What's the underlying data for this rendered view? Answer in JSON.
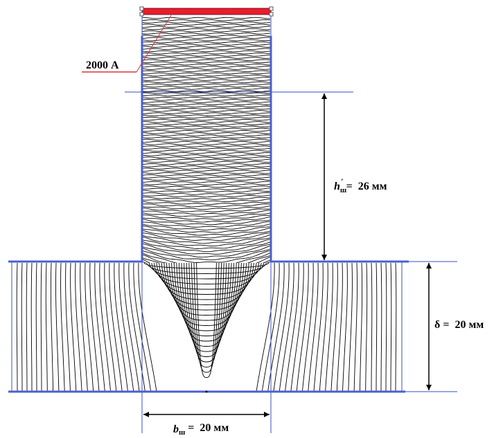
{
  "current_label": "2000 А",
  "tooth_height": {
    "symbol": "h",
    "subscript": "ш",
    "prime": "′",
    "equals": "=",
    "value": "26 мм"
  },
  "gap": {
    "symbol": "δ",
    "equals": "=",
    "value": "20 мм"
  },
  "tooth_width": {
    "symbol": "b",
    "subscript": "ш",
    "equals": "=",
    "value": "20 мм"
  },
  "colors": {
    "outline": "#4a5fd0",
    "thin_line": "#3a4fc0",
    "conductor": "#e81c2c",
    "leader": "#d8323a",
    "field_lines": "#000000"
  }
}
